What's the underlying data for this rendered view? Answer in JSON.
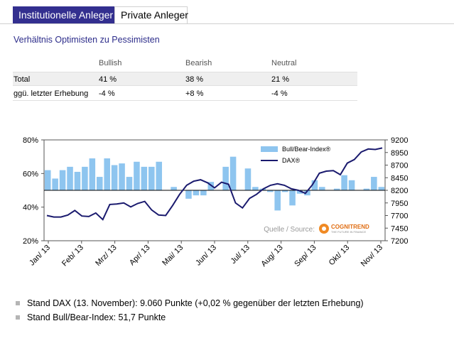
{
  "tabs": [
    {
      "label": "Institutionelle Anleger",
      "active": true
    },
    {
      "label": "Private Anleger",
      "active": false
    }
  ],
  "subtitle": "Verhältnis Optimisten zu Pessimisten",
  "summary": {
    "headers": [
      "",
      "Bullish",
      "Bearish",
      "Neutral"
    ],
    "rows": [
      [
        "Total",
        "41 %",
        "38 %",
        "21 %"
      ],
      [
        "ggü. letzter Erhebung",
        "-4 %",
        "+8 %",
        "-4 %"
      ]
    ]
  },
  "chart_data": {
    "type": "bar+line",
    "left_axis": {
      "ticks": [
        "20%",
        "40%",
        "60%",
        "80%"
      ],
      "range": [
        20,
        80
      ],
      "baseline": 50
    },
    "right_axis": {
      "ticks": [
        "7200",
        "7450",
        "7700",
        "7950",
        "8200",
        "8450",
        "8700",
        "8950",
        "9200"
      ],
      "range": [
        7200,
        9200
      ]
    },
    "x_labels": [
      "Jan/ 13",
      "Feb/ 13",
      "Mrz/ 13",
      "Apr/ 13",
      "Mai/ 13",
      "Jun/ 13",
      "Jul/ 13",
      "Aug/ 13",
      "Sep/ 13",
      "Okt/ 13",
      "Nov/ 13"
    ],
    "legend": [
      {
        "name": "Bull/Bear-Index®",
        "color": "#8ec5ef"
      },
      {
        "name": "DAX®",
        "color": "#1a1a6e"
      }
    ],
    "source_label": "Quelle / Source:",
    "logo_text": "COGNITREND",
    "logo_subtext": "THE FUTURE IN FINANCE",
    "bull_bear_index": [
      62,
      57,
      62,
      64,
      61,
      64,
      69,
      58,
      69,
      65,
      66,
      58,
      67,
      64,
      64,
      67,
      50,
      52,
      50,
      45,
      47,
      47,
      55,
      50,
      64,
      70,
      50,
      63,
      52,
      51,
      49,
      38,
      49,
      41,
      48,
      47,
      56,
      52,
      50,
      51,
      59,
      56,
      50,
      51,
      58,
      52
    ],
    "dax": [
      7700,
      7670,
      7670,
      7710,
      7800,
      7690,
      7680,
      7750,
      7620,
      7920,
      7930,
      7950,
      7870,
      7940,
      7980,
      7810,
      7710,
      7700,
      7900,
      8120,
      8300,
      8380,
      8410,
      8350,
      8250,
      8360,
      8320,
      7950,
      7850,
      8040,
      8120,
      8230,
      8300,
      8330,
      8300,
      8230,
      8200,
      8140,
      8310,
      8540,
      8580,
      8590,
      8510,
      8740,
      8810,
      8960,
      9020,
      9010,
      9040
    ]
  },
  "bullets": [
    "Stand DAX (13. November): 9.060 Punkte (+0,02 % gegenüber der letzten Erhebung)",
    "Stand Bull/Bear-Index: 51,7 Punkte"
  ]
}
